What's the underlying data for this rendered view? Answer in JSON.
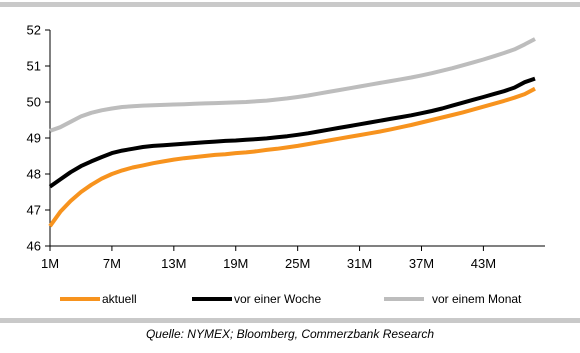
{
  "chart_data": {
    "type": "line",
    "x": [
      "1M",
      "2M",
      "3M",
      "4M",
      "5M",
      "6M",
      "7M",
      "8M",
      "9M",
      "10M",
      "11M",
      "12M",
      "13M",
      "14M",
      "15M",
      "16M",
      "17M",
      "18M",
      "19M",
      "20M",
      "21M",
      "22M",
      "23M",
      "24M",
      "25M",
      "26M",
      "27M",
      "28M",
      "29M",
      "30M",
      "31M",
      "32M",
      "33M",
      "34M",
      "35M",
      "36M",
      "37M",
      "38M",
      "39M",
      "40M",
      "41M",
      "42M",
      "43M",
      "44M",
      "45M",
      "46M",
      "47M",
      "48M"
    ],
    "xticks": [
      "1M",
      "7M",
      "13M",
      "19M",
      "25M",
      "31M",
      "37M",
      "43M"
    ],
    "ylim": [
      46,
      52
    ],
    "yticks": [
      "46",
      "47",
      "48",
      "49",
      "50",
      "51",
      "52"
    ],
    "grid": false,
    "legend_position": "bottom",
    "series": [
      {
        "name": "aktuell",
        "color": "#f7931e",
        "values": [
          46.55,
          46.95,
          47.25,
          47.5,
          47.7,
          47.87,
          48.0,
          48.1,
          48.18,
          48.24,
          48.3,
          48.35,
          48.4,
          48.44,
          48.47,
          48.5,
          48.53,
          48.55,
          48.58,
          48.6,
          48.63,
          48.67,
          48.7,
          48.74,
          48.78,
          48.83,
          48.88,
          48.93,
          48.98,
          49.03,
          49.08,
          49.13,
          49.18,
          49.24,
          49.3,
          49.36,
          49.43,
          49.5,
          49.57,
          49.64,
          49.71,
          49.79,
          49.87,
          49.95,
          50.03,
          50.12,
          50.22,
          50.37
        ]
      },
      {
        "name": "vor einer Woche",
        "color": "#000000",
        "values": [
          47.65,
          47.85,
          48.05,
          48.22,
          48.35,
          48.47,
          48.58,
          48.65,
          48.7,
          48.75,
          48.78,
          48.8,
          48.82,
          48.84,
          48.86,
          48.88,
          48.9,
          48.92,
          48.93,
          48.95,
          48.97,
          48.99,
          49.02,
          49.05,
          49.09,
          49.13,
          49.18,
          49.23,
          49.28,
          49.33,
          49.38,
          49.43,
          49.48,
          49.53,
          49.58,
          49.63,
          49.69,
          49.75,
          49.82,
          49.9,
          49.98,
          50.06,
          50.14,
          50.22,
          50.3,
          50.4,
          50.55,
          50.65
        ]
      },
      {
        "name": "vor einem Monat",
        "color": "#bdbdbd",
        "values": [
          49.2,
          49.3,
          49.45,
          49.6,
          49.7,
          49.77,
          49.82,
          49.86,
          49.88,
          49.9,
          49.91,
          49.92,
          49.93,
          49.94,
          49.95,
          49.96,
          49.97,
          49.98,
          49.99,
          50.0,
          50.02,
          50.04,
          50.07,
          50.1,
          50.14,
          50.18,
          50.23,
          50.28,
          50.33,
          50.38,
          50.43,
          50.48,
          50.53,
          50.58,
          50.63,
          50.68,
          50.74,
          50.8,
          50.87,
          50.94,
          51.02,
          51.1,
          51.18,
          51.27,
          51.36,
          51.46,
          51.6,
          51.75
        ]
      }
    ]
  },
  "source_text": "Quelle: NYMEX; Bloomberg, Commerzbank Research"
}
